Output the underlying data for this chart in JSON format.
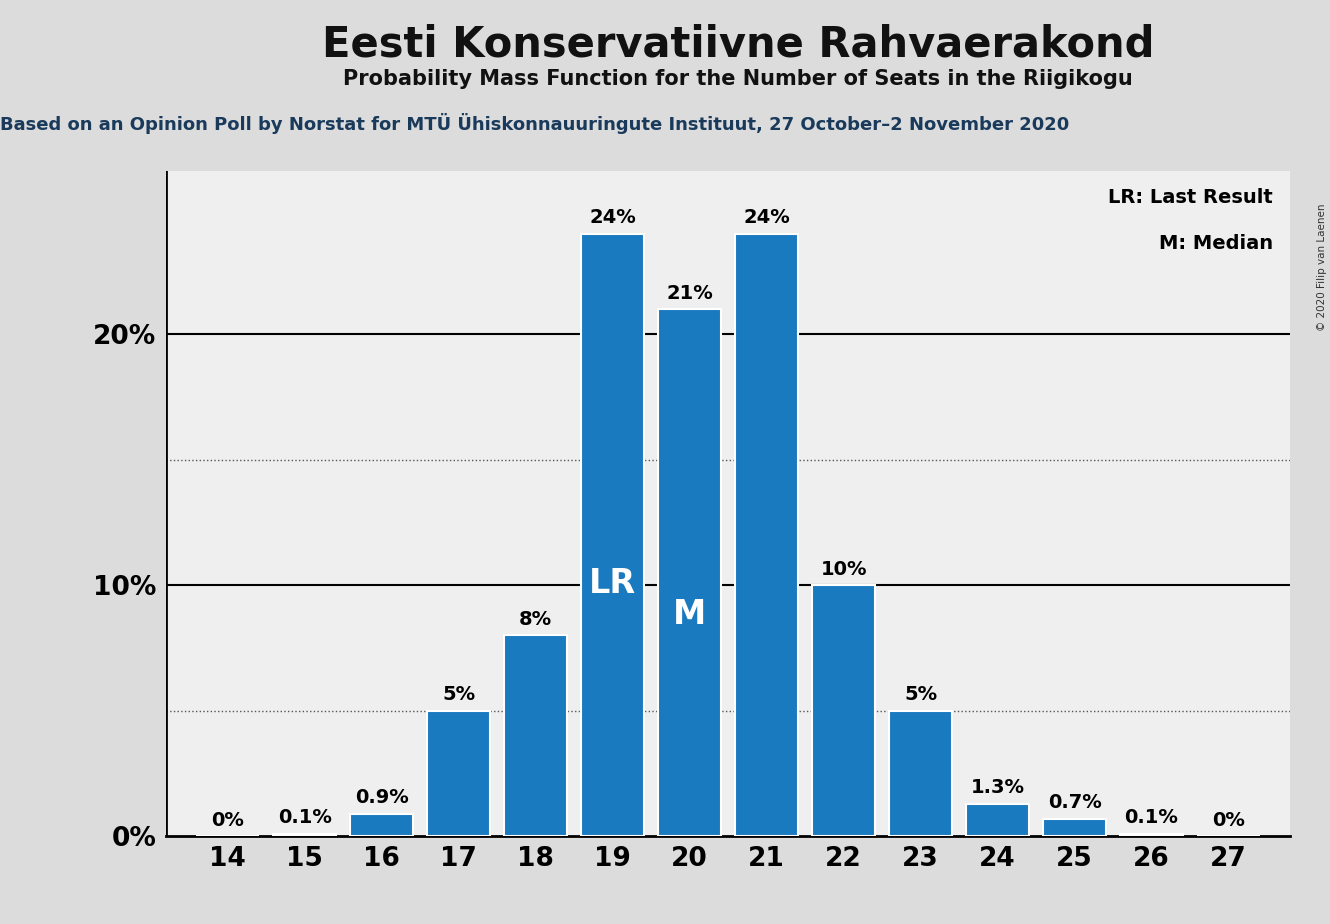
{
  "title": "Eesti Konservatiivne Rahvaerakond",
  "subtitle": "Probability Mass Function for the Number of Seats in the Riigikogu",
  "source_line": "Based on an Opinion Poll by Norstat for MTÜ Ühiskonnauuringute Instituut, 27 October–2 November 2020",
  "copyright": "© 2020 Filip van Laenen",
  "seats": [
    14,
    15,
    16,
    17,
    18,
    19,
    20,
    21,
    22,
    23,
    24,
    25,
    26,
    27
  ],
  "probabilities": [
    0.0,
    0.1,
    0.9,
    5.0,
    8.0,
    24.0,
    21.0,
    24.0,
    10.0,
    5.0,
    1.3,
    0.7,
    0.1,
    0.0
  ],
  "bar_color": "#1a7abf",
  "background_color": "#dcdcdc",
  "plot_background": "#efefef",
  "black_panel_color": "#111111",
  "LR_seat": 19,
  "M_seat": 20,
  "LR_label": "LR",
  "M_label": "M",
  "legend_LR": "LR: Last Result",
  "legend_M": "M: Median",
  "solid_lines": [
    10.0,
    20.0
  ],
  "dotted_lines": [
    5.0,
    15.0
  ],
  "ylim": [
    0,
    26.5
  ],
  "title_fontsize": 30,
  "subtitle_fontsize": 15,
  "source_fontsize": 13,
  "bar_label_fontsize": 14,
  "axis_tick_fontsize": 19,
  "inner_label_fontsize": 24,
  "legend_fontsize": 14,
  "source_color": "#1a3a5c",
  "title_color": "#111111"
}
